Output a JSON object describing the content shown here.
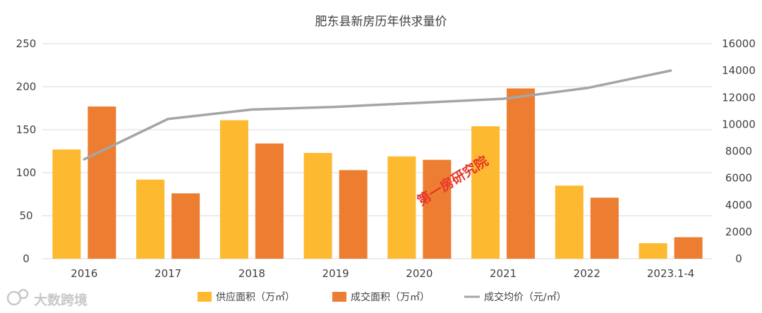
{
  "chart_data": {
    "type": "bar",
    "title": "肥东县新房历年供求量价",
    "categories": [
      "2016",
      "2017",
      "2018",
      "2019",
      "2020",
      "2021",
      "2022",
      "2023.1-4"
    ],
    "series": [
      {
        "name": "供应面积（万㎡）",
        "type": "bar",
        "axis": "left",
        "color": "#FDB92F",
        "values": [
          127,
          92,
          161,
          123,
          119,
          154,
          85,
          18
        ]
      },
      {
        "name": "成交面积（万㎡）",
        "type": "bar",
        "axis": "left",
        "color": "#ED7D31",
        "values": [
          177,
          76,
          134,
          103,
          115,
          198,
          71,
          25
        ]
      },
      {
        "name": "成交均价（元/㎡）",
        "type": "line",
        "axis": "right",
        "color": "#A5A5A5",
        "values": [
          7400,
          10400,
          11100,
          11300,
          11600,
          11900,
          12700,
          14000
        ]
      }
    ],
    "y_left": {
      "ylim": [
        0,
        250
      ],
      "ticks": [
        "0",
        "50",
        "100",
        "150",
        "200",
        "250"
      ]
    },
    "y_right": {
      "ylim": [
        0,
        16000
      ],
      "ticks": [
        "0",
        "2000",
        "4000",
        "6000",
        "8000",
        "10000",
        "12000",
        "14000",
        "16000"
      ]
    },
    "grid": true,
    "legend_position": "bottom"
  },
  "watermark": "第一房研究院",
  "logo": {
    "text": "大数跨境"
  }
}
